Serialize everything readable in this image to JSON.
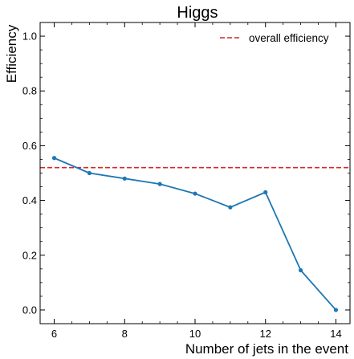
{
  "chart_data": {
    "type": "line",
    "title": "Higgs",
    "xlabel": "Number of jets in the event",
    "ylabel": "Efficiency",
    "xlim": [
      5.6,
      14.4
    ],
    "ylim": [
      -0.05,
      1.05
    ],
    "xticks": [
      6,
      8,
      10,
      12,
      14
    ],
    "yticks": [
      0.0,
      0.2,
      0.4,
      0.6,
      0.8,
      1.0
    ],
    "ytick_labels": [
      "0.0",
      "0.2",
      "0.4",
      "0.6",
      "0.8",
      "1.0"
    ],
    "grid": false,
    "legend_position": "top-right",
    "series": [
      {
        "x": [
          6,
          7,
          8,
          9,
          10,
          11,
          12,
          13,
          14
        ],
        "y": [
          0.555,
          0.5,
          0.48,
          0.46,
          0.425,
          0.375,
          0.43,
          0.145,
          0.0
        ],
        "color": "#1f77b4",
        "marker": "dot"
      }
    ],
    "reference_lines": [
      {
        "name": "overall efficiency",
        "y": 0.52,
        "color": "#d62728",
        "style": "dashed"
      }
    ]
  }
}
